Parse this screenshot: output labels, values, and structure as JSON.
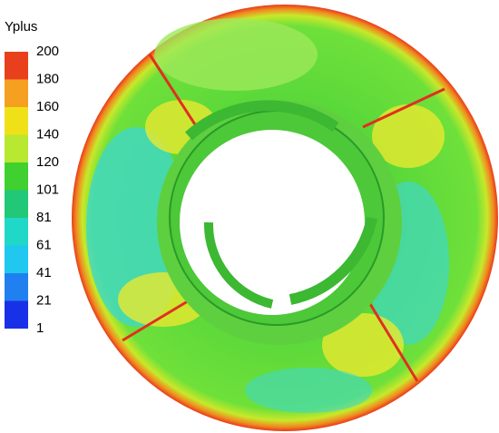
{
  "legend": {
    "title": "Yplus",
    "labels": [
      "200",
      "180",
      "160",
      "140",
      "120",
      "101",
      "81",
      "61",
      "41",
      "21",
      "1"
    ]
  }
}
